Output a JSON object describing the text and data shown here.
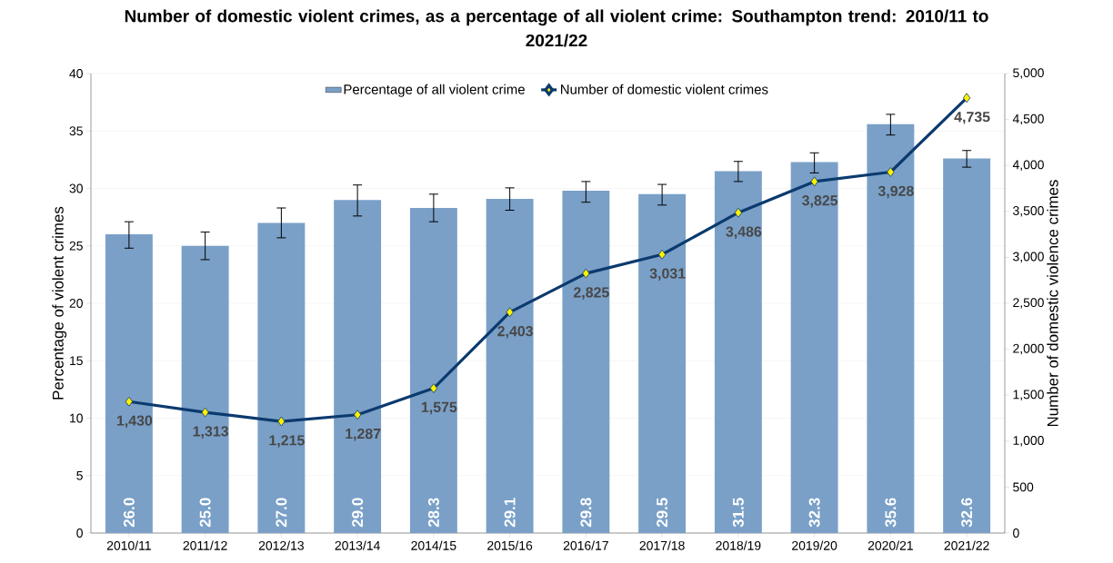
{
  "chart_data": {
    "type": "bar",
    "title": "Number of domestic violent crimes, as a percentage of all violent crime: Southampton trend: 2010/11 to 2021/22",
    "ylabel": "Percentage of violent crimes",
    "y2label": "Number of domestic violence crimes",
    "categories": [
      "2010/11",
      "2011/12",
      "2012/13",
      "2013/14",
      "2014/15",
      "2015/16",
      "2016/17",
      "2017/18",
      "2018/19",
      "2019/20",
      "2020/21",
      "2021/22"
    ],
    "series": [
      {
        "name": "Percentage of all violent crime",
        "color": "#7aa0c8",
        "values": [
          26.0,
          25.0,
          27.0,
          29.0,
          28.3,
          29.1,
          29.8,
          29.5,
          31.5,
          32.3,
          35.6,
          32.6
        ],
        "errors": [
          [
            24.8,
            27.1
          ],
          [
            23.8,
            26.2
          ],
          [
            25.7,
            28.3
          ],
          [
            27.6,
            30.3
          ],
          [
            27.1,
            29.5
          ],
          [
            28.1,
            30.05
          ],
          [
            28.8,
            30.6
          ],
          [
            28.55,
            30.35
          ],
          [
            30.6,
            32.35
          ],
          [
            31.35,
            33.1
          ],
          [
            34.65,
            36.45
          ],
          [
            31.85,
            33.3
          ]
        ],
        "value_labels": [
          "26.0",
          "25.0",
          "27.0",
          "29.0",
          "28.3",
          "29.1",
          "29.8",
          "29.5",
          "31.5",
          "32.3",
          "35.6",
          "32.6"
        ]
      },
      {
        "name": "Number of domestic violent crimes",
        "type": "line",
        "axis": "y2",
        "color": "#0b3a6e",
        "marker": "diamond",
        "line_style": "solid",
        "values": [
          1430,
          1313,
          1215,
          1287,
          1575,
          2403,
          2825,
          3031,
          3486,
          3825,
          3928,
          4735
        ],
        "value_labels": [
          "1,430",
          "1,313",
          "1,215",
          "1,287",
          "1,575",
          "2,403",
          "2,825",
          "3,031",
          "3,486",
          "3,825",
          "3,928",
          "4,735"
        ]
      }
    ],
    "ylim": [
      0,
      40
    ],
    "yticks": [
      0,
      5,
      10,
      15,
      20,
      25,
      30,
      35,
      40
    ],
    "y2lim": [
      0,
      5000
    ],
    "y2ticks": [
      0,
      500,
      {
        "value": 1000,
        "label": "1,000"
      },
      {
        "value": 1500,
        "label": "1,500"
      },
      {
        "value": 2000,
        "label": "2,000"
      },
      {
        "value": 2500,
        "label": "2,500"
      },
      {
        "value": 3000,
        "label": "3,000"
      },
      {
        "value": 3500,
        "label": "3,500"
      },
      {
        "value": 4000,
        "label": "4,000"
      },
      {
        "value": 4500,
        "label": "4,500"
      },
      {
        "value": 5000,
        "label": "5,000"
      }
    ],
    "grid": "y",
    "legend": "top"
  }
}
